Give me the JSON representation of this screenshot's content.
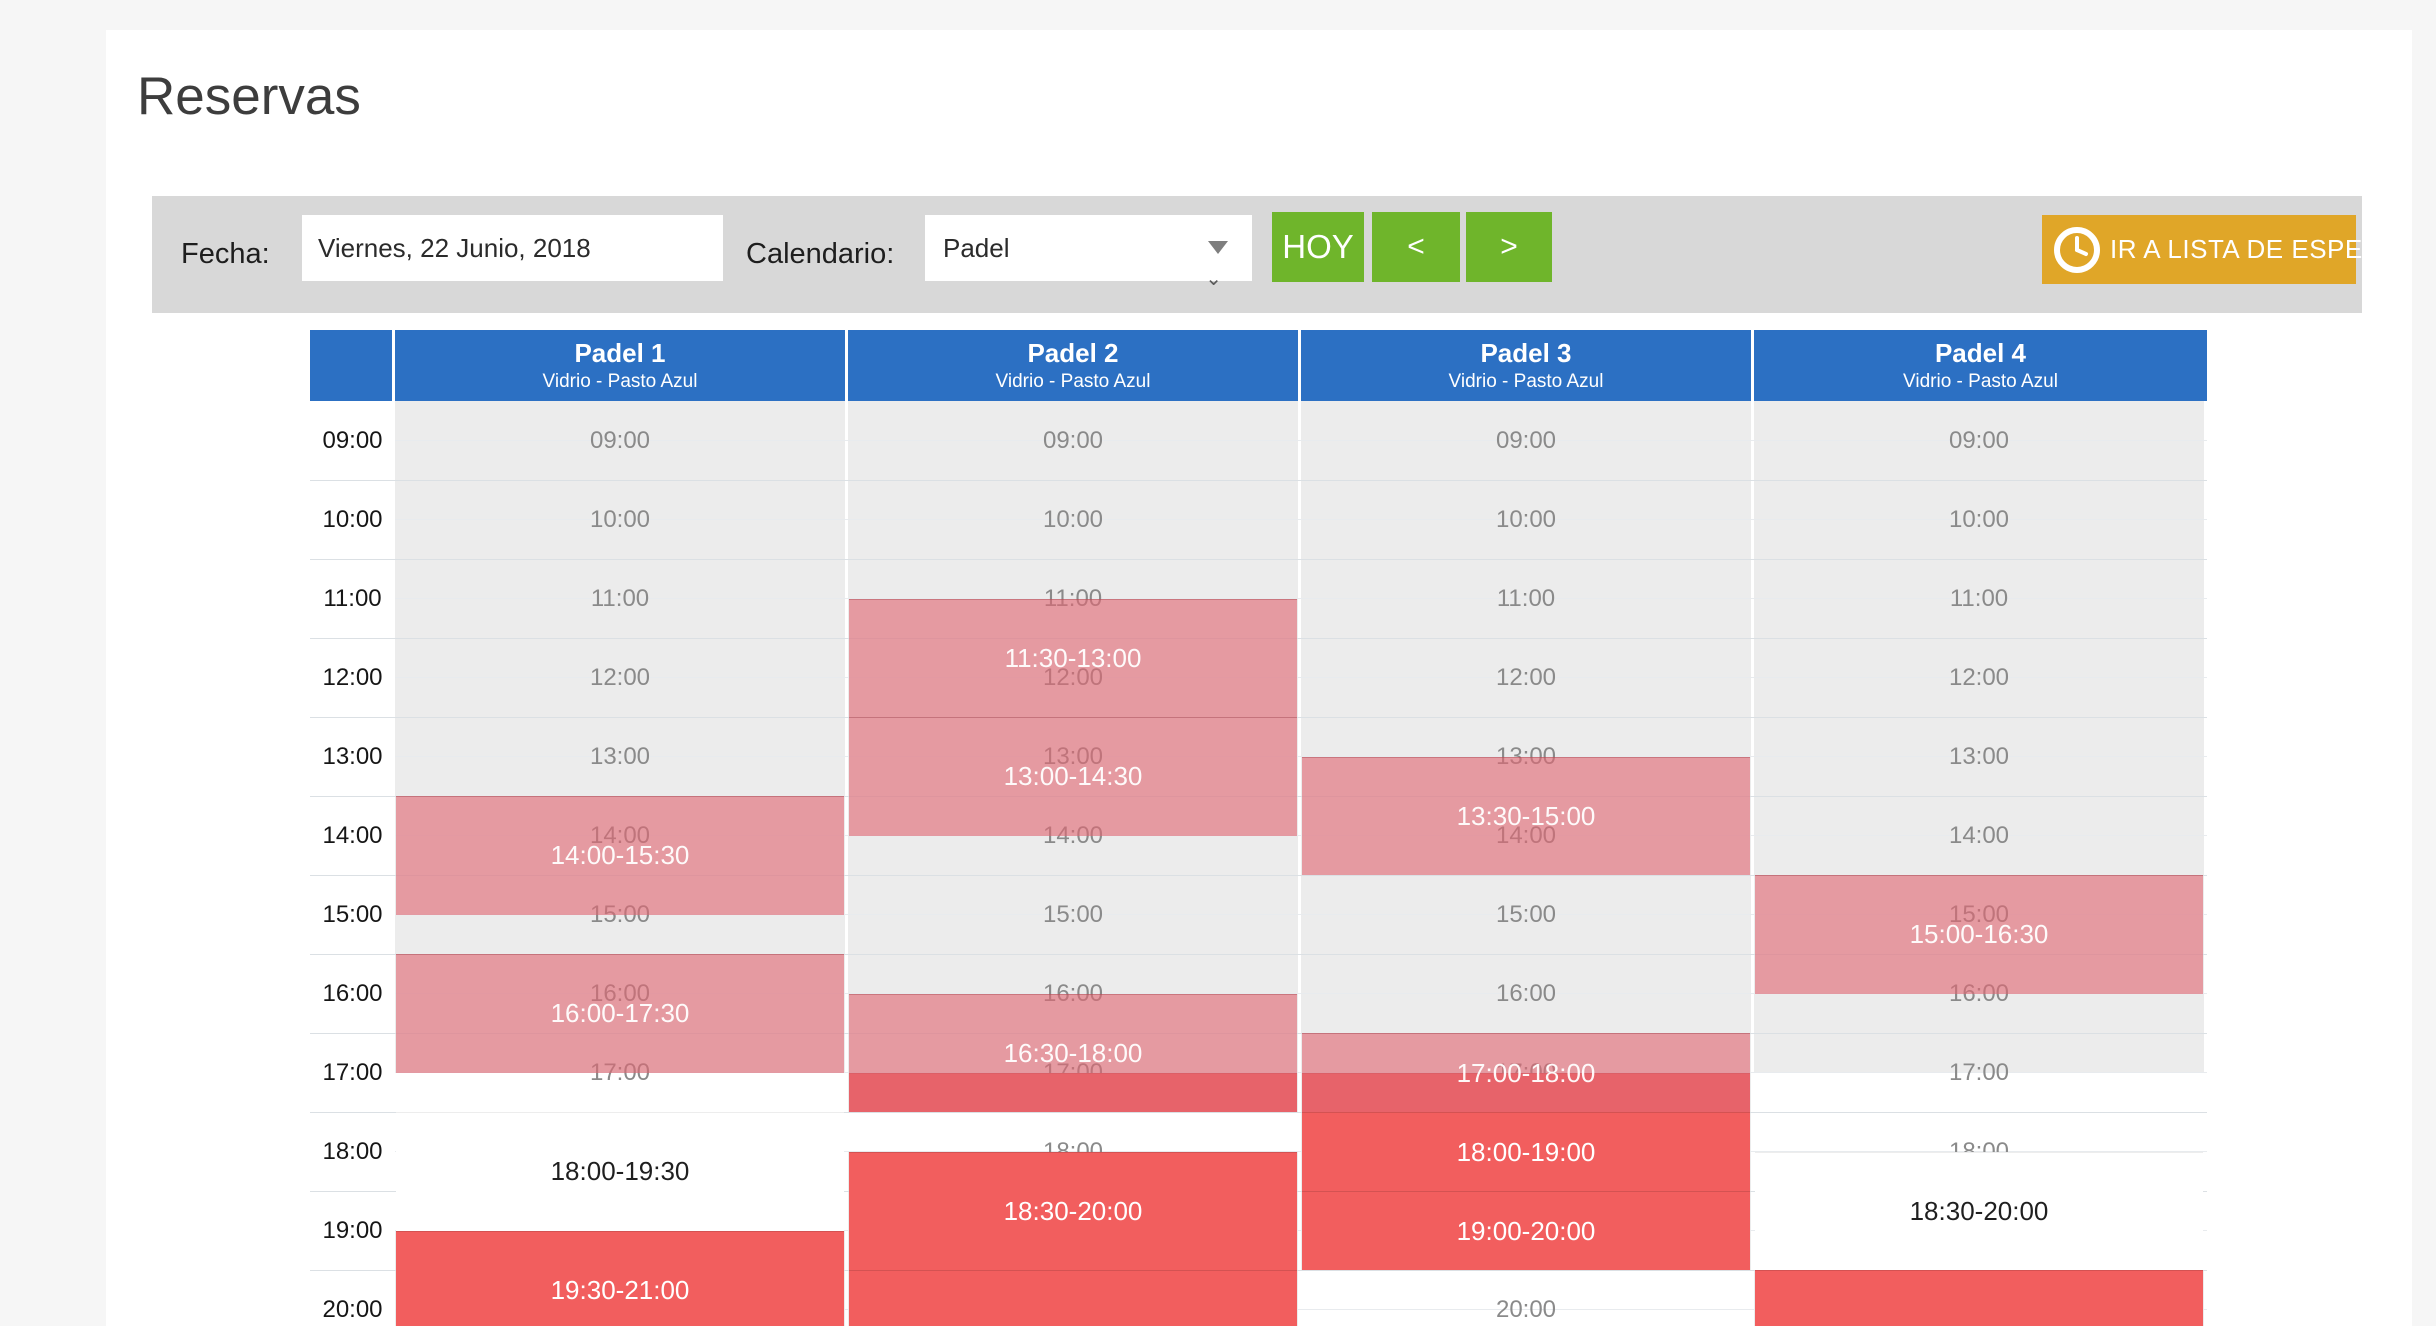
{
  "page": {
    "title": "Reservas"
  },
  "toolbar": {
    "fecha_label": "Fecha:",
    "fecha_value": "Viernes, 22 Junio, 2018",
    "calendario_label": "Calendario:",
    "calendario_value": "Padel",
    "hoy_label": "HOY",
    "prev_label": "<",
    "next_label": ">",
    "lista_espera_label": "IR A LISTA DE ESPERA"
  },
  "calendar": {
    "courts": [
      {
        "name": "Padel 1",
        "subtitle": "Vidrio - Pasto Azul"
      },
      {
        "name": "Padel 2",
        "subtitle": "Vidrio - Pasto Azul"
      },
      {
        "name": "Padel 3",
        "subtitle": "Vidrio - Pasto Azul"
      },
      {
        "name": "Padel 4",
        "subtitle": "Vidrio - Pasto Azul"
      }
    ],
    "times": [
      "09:00",
      "10:00",
      "11:00",
      "12:00",
      "13:00",
      "14:00",
      "15:00",
      "16:00",
      "17:00",
      "18:00",
      "19:00",
      "20:00"
    ],
    "white_ranges": [
      {
        "court": 0,
        "start": "17:30",
        "end": "19:30"
      },
      {
        "court": 1,
        "start": "18:00",
        "end": "18:30"
      },
      {
        "court": 2,
        "start": "20:00",
        "end": "21:00"
      },
      {
        "court": 3,
        "start": "17:30",
        "end": "20:00"
      }
    ],
    "events": [
      {
        "court": 0,
        "start": "14:00",
        "end": "15:30",
        "label": "14:00-15:30",
        "type": "pink"
      },
      {
        "court": 0,
        "start": "16:00",
        "end": "17:30",
        "label": "16:00-17:30",
        "type": "pink"
      },
      {
        "court": 0,
        "start": "18:00",
        "end": "19:30",
        "label": "18:00-19:30",
        "type": "white"
      },
      {
        "court": 0,
        "start": "19:30",
        "end": "21:00",
        "label": "19:30-21:00",
        "type": "red"
      },
      {
        "court": 1,
        "start": "11:30",
        "end": "13:00",
        "label": "11:30-13:00",
        "type": "pink"
      },
      {
        "court": 1,
        "start": "13:00",
        "end": "14:30",
        "label": "13:00-14:30",
        "type": "pink"
      },
      {
        "court": 1,
        "start": "17:30",
        "end": "18:00",
        "label": "",
        "type": "red"
      },
      {
        "court": 1,
        "start": "16:30",
        "end": "18:00",
        "label": "16:30-18:00",
        "type": "pink"
      },
      {
        "court": 1,
        "start": "18:30",
        "end": "20:00",
        "label": "18:30-20:00",
        "type": "red"
      },
      {
        "court": 1,
        "start": "20:00",
        "end": "21:30",
        "label": "",
        "type": "red"
      },
      {
        "court": 2,
        "start": "13:30",
        "end": "15:00",
        "label": "13:30-15:00",
        "type": "pink"
      },
      {
        "court": 2,
        "start": "17:30",
        "end": "18:00",
        "label": "",
        "type": "red"
      },
      {
        "court": 2,
        "start": "17:00",
        "end": "18:00",
        "label": "17:00-18:00",
        "type": "pink"
      },
      {
        "court": 2,
        "start": "18:00",
        "end": "19:00",
        "label": "18:00-19:00",
        "type": "red"
      },
      {
        "court": 2,
        "start": "19:00",
        "end": "20:00",
        "label": "19:00-20:00",
        "type": "red"
      },
      {
        "court": 3,
        "start": "15:00",
        "end": "16:30",
        "label": "15:00-16:30",
        "type": "pink"
      },
      {
        "court": 3,
        "start": "18:30",
        "end": "20:00",
        "label": "18:30-20:00",
        "type": "white"
      },
      {
        "court": 3,
        "start": "20:00",
        "end": "21:30",
        "label": "",
        "type": "red"
      }
    ]
  },
  "colors": {
    "header_blue": "#2c70c3",
    "button_green": "#6fb52b",
    "button_orange": "#e0a628",
    "event_pink": "#e49ba1",
    "event_red": "#f25e5e",
    "toolbar_gray": "#d8d8d8",
    "slot_gray": "#ececec"
  }
}
